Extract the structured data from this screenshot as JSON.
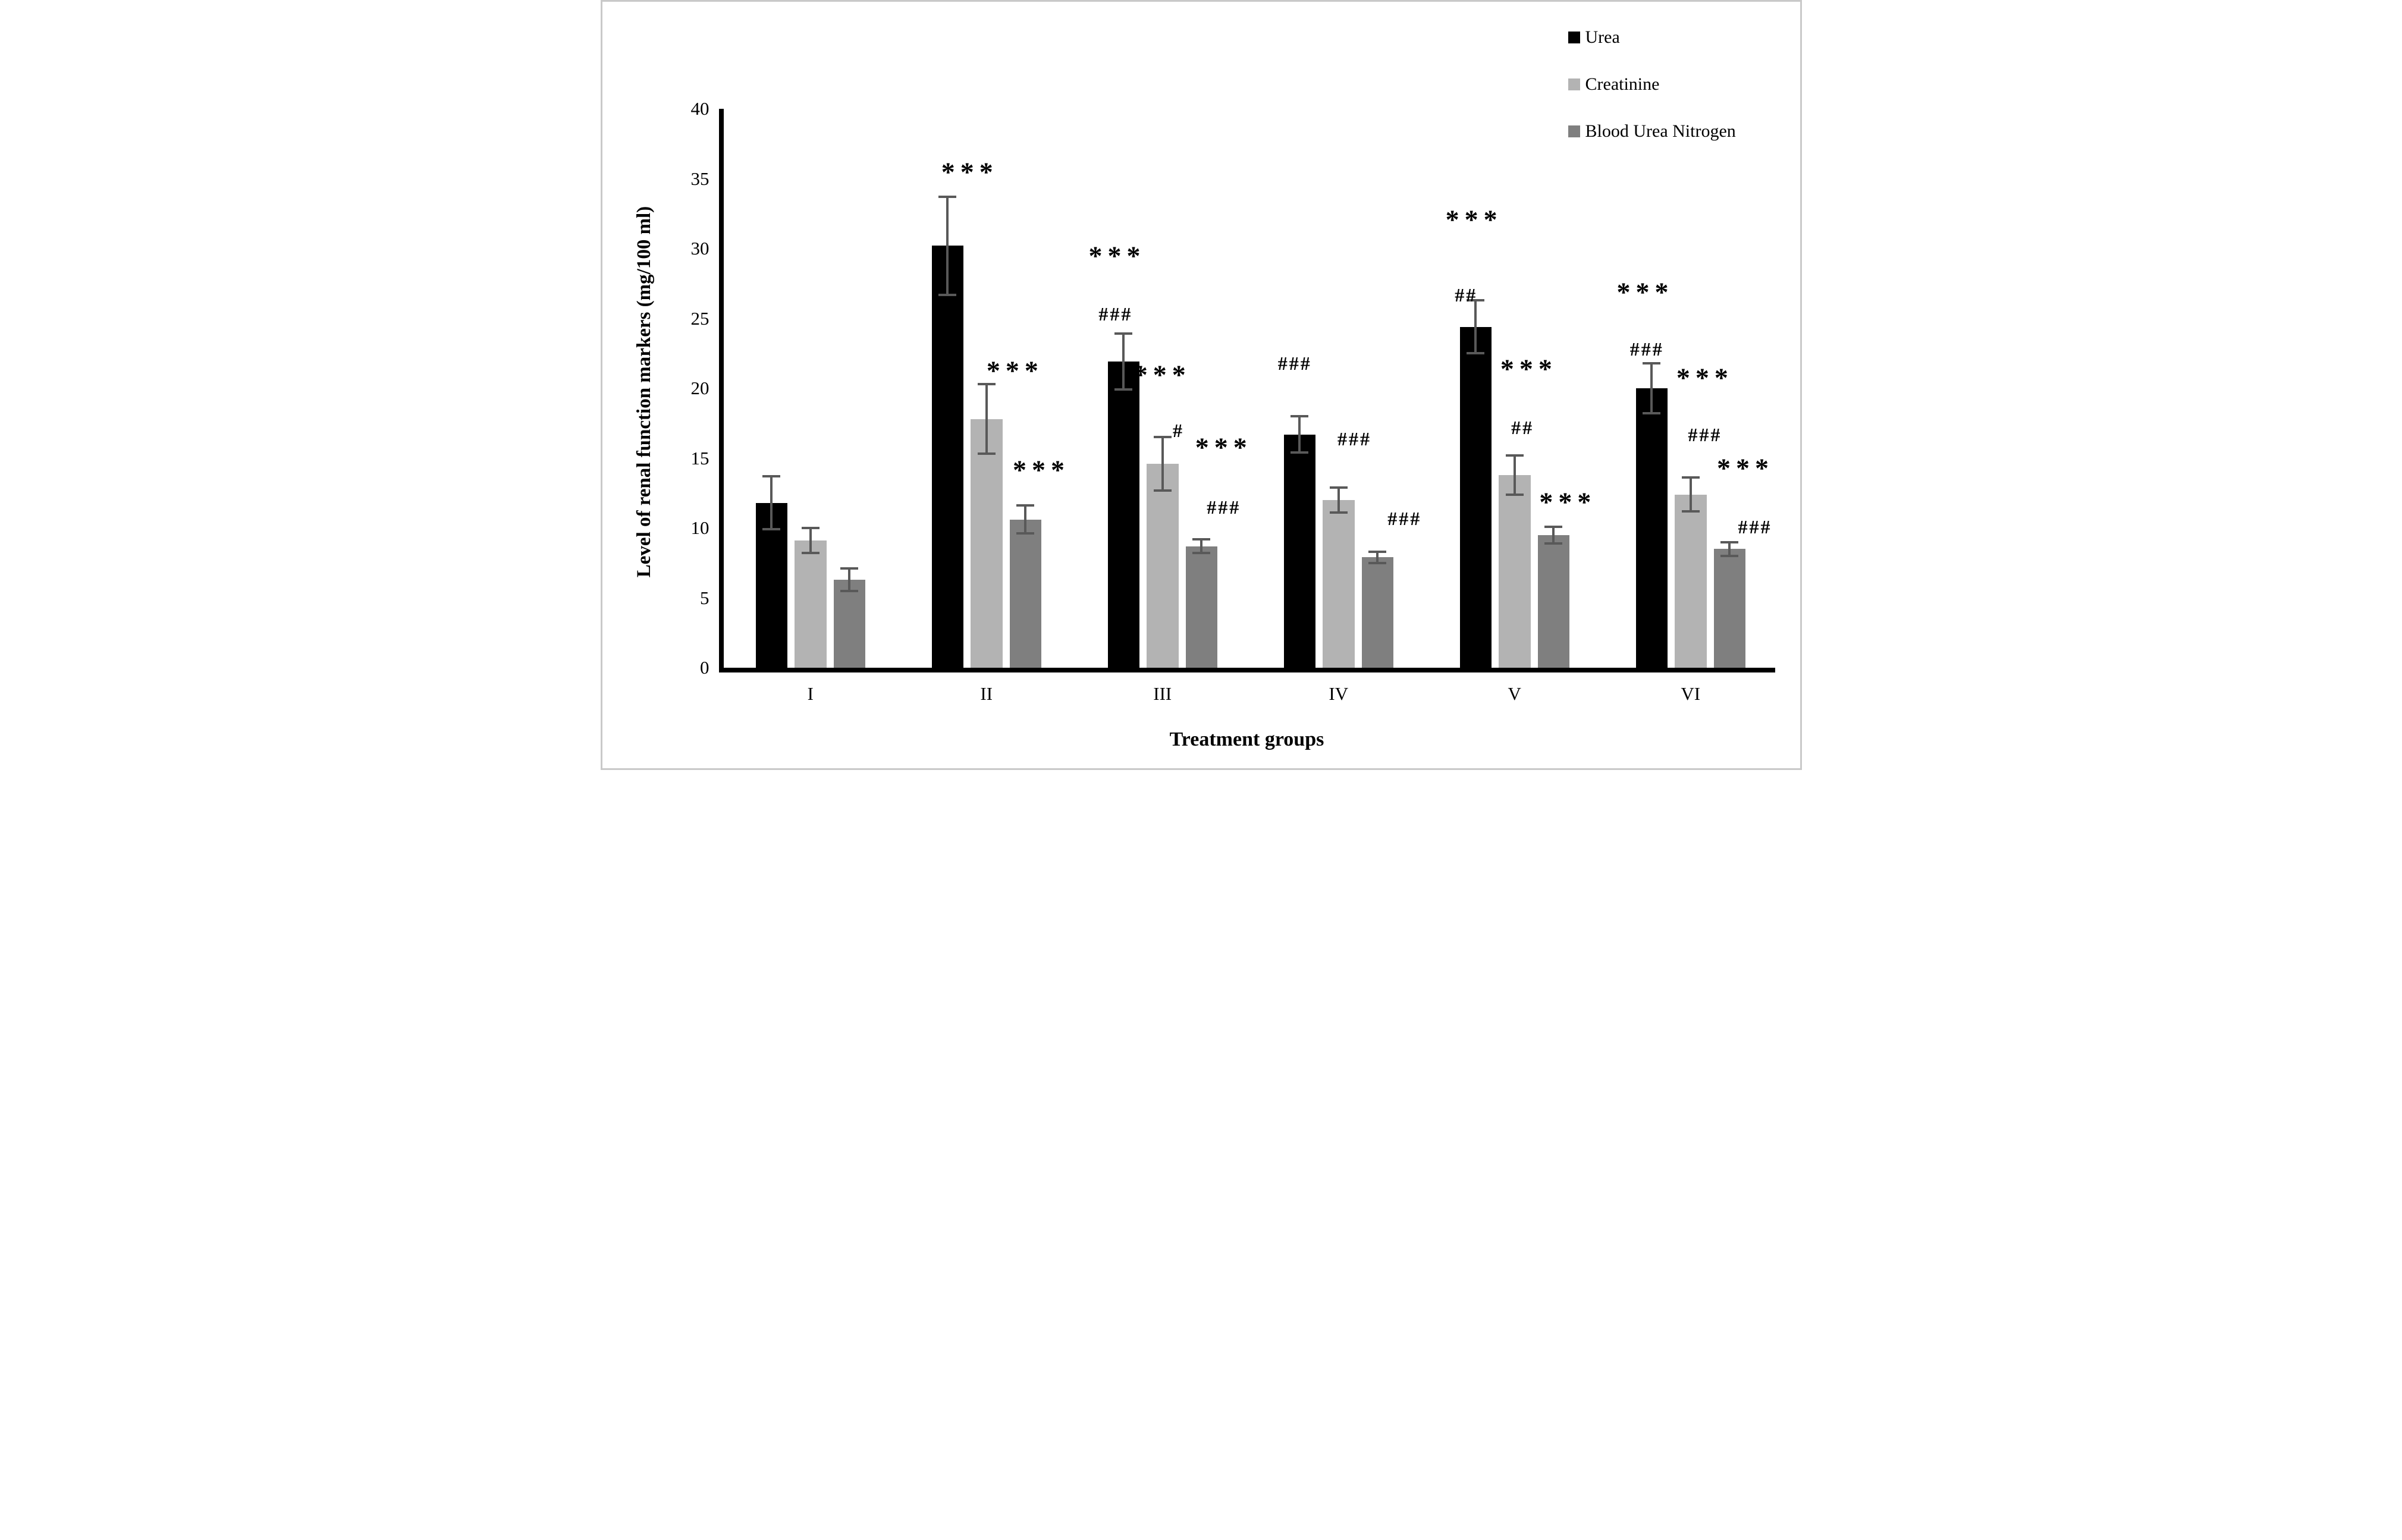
{
  "chart_data": {
    "type": "bar",
    "title": "",
    "xlabel": "Treatment groups",
    "ylabel": "Level of renal function markers (mg/100 ml)",
    "ylim": [
      0,
      40
    ],
    "yticks": [
      0,
      5,
      10,
      15,
      20,
      25,
      30,
      35,
      40
    ],
    "categories": [
      "I",
      "II",
      "III",
      "IV",
      "V",
      "VI"
    ],
    "series": [
      {
        "name": "Urea",
        "color": "#000000",
        "values": [
          11.8,
          30.2,
          21.9,
          16.7,
          24.4,
          20.0
        ],
        "errors": [
          1.9,
          3.5,
          2.0,
          1.3,
          1.9,
          1.8
        ]
      },
      {
        "name": "Creatinine",
        "color": "#b3b3b3",
        "values": [
          9.1,
          17.8,
          14.6,
          12.0,
          13.8,
          12.4
        ],
        "errors": [
          0.9,
          2.5,
          1.9,
          0.9,
          1.4,
          1.2
        ]
      },
      {
        "name": "Blood Urea Nitrogen",
        "color": "#7f7f7f",
        "values": [
          6.3,
          10.6,
          8.7,
          7.9,
          9.5,
          8.5
        ],
        "errors": [
          0.8,
          1.0,
          0.5,
          0.4,
          0.6,
          0.5
        ]
      }
    ],
    "error_bar_color": "#595959",
    "grid": false,
    "legend_position": "top-right",
    "significance_marks": [
      {
        "group": "II",
        "series": "Urea",
        "text": "***",
        "y": 35.7,
        "dx": 0.7
      },
      {
        "group": "II",
        "series": "Creatinine",
        "text": "***",
        "y": 21.5,
        "dx": 0.9
      },
      {
        "group": "II",
        "series": "Blood Urea Nitrogen",
        "text": "***",
        "y": 14.4,
        "dx": 0.5
      },
      {
        "group": "III",
        "series": "Urea",
        "text": "***",
        "y": 29.7,
        "dx": -0.2
      },
      {
        "group": "III",
        "series": "Urea",
        "text": "###",
        "y": 25.3,
        "dx": -0.25
      },
      {
        "group": "III",
        "series": "Creatinine",
        "text": "***",
        "y": 21.2,
        "dx": 0.0
      },
      {
        "group": "III",
        "series": "Creatinine",
        "text": "#",
        "y": 17.0,
        "dx": 0.5
      },
      {
        "group": "III",
        "series": "Blood Urea Nitrogen",
        "text": "***",
        "y": 16.0,
        "dx": 0.7
      },
      {
        "group": "III",
        "series": "Blood Urea Nitrogen",
        "text": "###",
        "y": 11.5,
        "dx": 0.7
      },
      {
        "group": "IV",
        "series": "Urea",
        "text": "###",
        "y": 21.8,
        "dx": -0.15
      },
      {
        "group": "IV",
        "series": "Creatinine",
        "text": "###",
        "y": 16.4,
        "dx": 0.5
      },
      {
        "group": "IV",
        "series": "Blood Urea Nitrogen",
        "text": "###",
        "y": 10.7,
        "dx": 0.85
      },
      {
        "group": "V",
        "series": "Urea",
        "text": "***",
        "y": 32.3,
        "dx": -0.05
      },
      {
        "group": "V",
        "series": "Urea",
        "text": "##",
        "y": 26.7,
        "dx": -0.3
      },
      {
        "group": "V",
        "series": "Creatinine",
        "text": "***",
        "y": 21.6,
        "dx": 0.45
      },
      {
        "group": "V",
        "series": "Creatinine",
        "text": "##",
        "y": 17.2,
        "dx": 0.25
      },
      {
        "group": "V",
        "series": "Blood Urea Nitrogen",
        "text": "***",
        "y": 12.1,
        "dx": 0.45
      },
      {
        "group": "VI",
        "series": "Urea",
        "text": "***",
        "y": 27.1,
        "dx": -0.2
      },
      {
        "group": "VI",
        "series": "Urea",
        "text": "###",
        "y": 22.8,
        "dx": -0.15
      },
      {
        "group": "VI",
        "series": "Creatinine",
        "text": "***",
        "y": 21.0,
        "dx": 0.45
      },
      {
        "group": "VI",
        "series": "Creatinine",
        "text": "###",
        "y": 16.7,
        "dx": 0.45
      },
      {
        "group": "VI",
        "series": "Blood Urea Nitrogen",
        "text": "***",
        "y": 14.5,
        "dx": 0.5
      },
      {
        "group": "VI",
        "series": "Blood Urea Nitrogen",
        "text": "###",
        "y": 10.1,
        "dx": 0.8
      }
    ]
  }
}
